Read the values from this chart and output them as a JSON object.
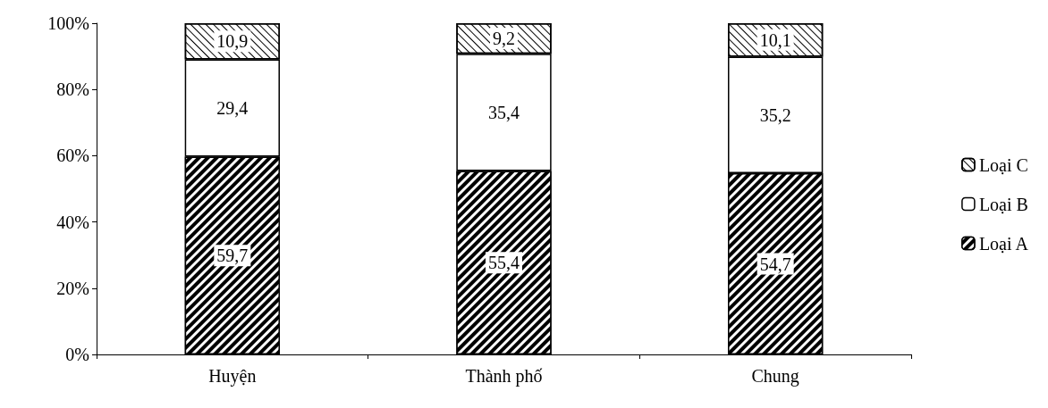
{
  "chart_data": {
    "type": "bar",
    "stacked": true,
    "categories": [
      "Huyện",
      "Thành phố",
      "Chung"
    ],
    "series": [
      {
        "name": "Loại A",
        "color": "#000000",
        "values": [
          59.7,
          55.4,
          54.7
        ],
        "value_labels": [
          "59,7",
          "55,4",
          "54,7"
        ]
      },
      {
        "name": "Loại B",
        "color": "#ffffff",
        "values": [
          29.4,
          35.4,
          35.2
        ],
        "value_labels": [
          "29,4",
          "35,4",
          "35,2"
        ]
      },
      {
        "name": "Loại C",
        "color": "#ffffff",
        "values": [
          10.9,
          9.2,
          10.1
        ],
        "value_labels": [
          "10,9",
          "9,2",
          "10,1"
        ]
      }
    ],
    "ylim": [
      0,
      100
    ],
    "yticks": [
      {
        "value": 0,
        "label": "0%"
      },
      {
        "value": 20,
        "label": "20%"
      },
      {
        "value": 40,
        "label": "40%"
      },
      {
        "value": 60,
        "label": "60%"
      },
      {
        "value": 80,
        "label": "80%"
      },
      {
        "value": 100,
        "label": "100%"
      }
    ],
    "grid": false,
    "legend": "right"
  }
}
